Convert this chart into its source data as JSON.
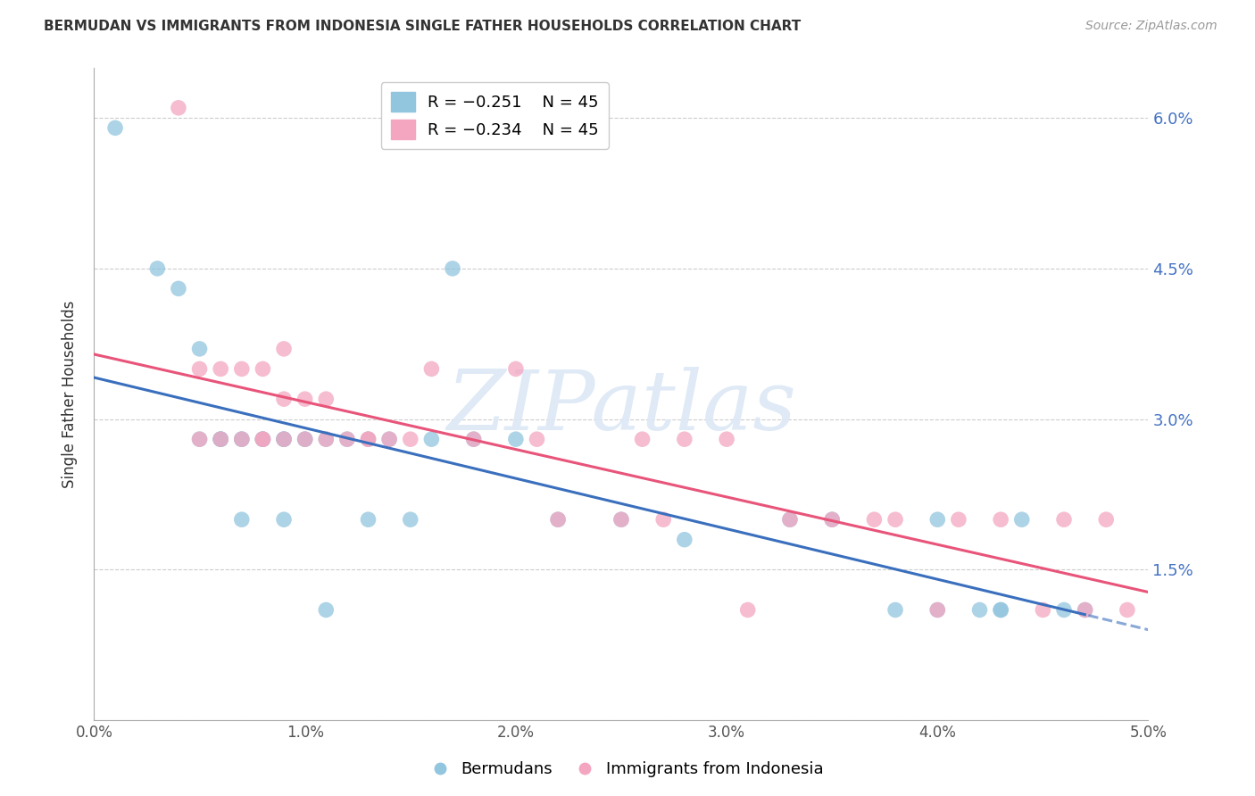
{
  "title": "BERMUDAN VS IMMIGRANTS FROM INDONESIA SINGLE FATHER HOUSEHOLDS CORRELATION CHART",
  "source": "Source: ZipAtlas.com",
  "ylabel": "Single Father Households",
  "x_tick_labels": [
    "0.0%",
    "1.0%",
    "2.0%",
    "3.0%",
    "4.0%",
    "5.0%"
  ],
  "y_tick_labels_right": [
    "1.5%",
    "3.0%",
    "4.5%",
    "6.0%"
  ],
  "xlim": [
    0.0,
    0.05
  ],
  "ylim": [
    0.0,
    0.065
  ],
  "watermark_text": "ZIPatlas",
  "legend_r1": "R = −0.251",
  "legend_n1": "N = 45",
  "legend_r2": "R = −0.234",
  "legend_n2": "N = 45",
  "legend_label1": "Bermudans",
  "legend_label2": "Immigrants from Indonesia",
  "color_blue": "#92c5de",
  "color_pink": "#f4a6c0",
  "line_color_blue": "#3a6fbd",
  "line_color_pink": "#e8547a",
  "background_color": "#ffffff",
  "title_fontsize": 11,
  "scatter_blue_x": [
    0.001,
    0.003,
    0.004,
    0.005,
    0.005,
    0.006,
    0.006,
    0.006,
    0.007,
    0.007,
    0.007,
    0.008,
    0.008,
    0.008,
    0.009,
    0.009,
    0.009,
    0.009,
    0.01,
    0.01,
    0.011,
    0.011,
    0.012,
    0.013,
    0.013,
    0.014,
    0.015,
    0.016,
    0.017,
    0.018,
    0.02,
    0.022,
    0.025,
    0.028,
    0.033,
    0.035,
    0.038,
    0.04,
    0.04,
    0.042,
    0.043,
    0.043,
    0.044,
    0.046,
    0.047
  ],
  "scatter_blue_y": [
    0.059,
    0.045,
    0.043,
    0.037,
    0.028,
    0.028,
    0.028,
    0.028,
    0.028,
    0.028,
    0.02,
    0.028,
    0.028,
    0.028,
    0.028,
    0.028,
    0.028,
    0.02,
    0.028,
    0.028,
    0.028,
    0.011,
    0.028,
    0.028,
    0.02,
    0.028,
    0.02,
    0.028,
    0.045,
    0.028,
    0.028,
    0.02,
    0.02,
    0.018,
    0.02,
    0.02,
    0.011,
    0.011,
    0.02,
    0.011,
    0.011,
    0.011,
    0.02,
    0.011,
    0.011
  ],
  "scatter_pink_x": [
    0.004,
    0.005,
    0.005,
    0.006,
    0.006,
    0.007,
    0.007,
    0.008,
    0.008,
    0.008,
    0.009,
    0.009,
    0.009,
    0.01,
    0.01,
    0.011,
    0.011,
    0.012,
    0.013,
    0.013,
    0.014,
    0.015,
    0.016,
    0.018,
    0.02,
    0.021,
    0.022,
    0.025,
    0.026,
    0.027,
    0.028,
    0.03,
    0.031,
    0.033,
    0.035,
    0.037,
    0.038,
    0.04,
    0.041,
    0.043,
    0.045,
    0.046,
    0.047,
    0.048,
    0.049
  ],
  "scatter_pink_y": [
    0.061,
    0.035,
    0.028,
    0.035,
    0.028,
    0.035,
    0.028,
    0.035,
    0.028,
    0.028,
    0.037,
    0.032,
    0.028,
    0.032,
    0.028,
    0.032,
    0.028,
    0.028,
    0.028,
    0.028,
    0.028,
    0.028,
    0.035,
    0.028,
    0.035,
    0.028,
    0.02,
    0.02,
    0.028,
    0.02,
    0.028,
    0.028,
    0.011,
    0.02,
    0.02,
    0.02,
    0.02,
    0.011,
    0.02,
    0.02,
    0.011,
    0.02,
    0.011,
    0.02,
    0.011
  ]
}
